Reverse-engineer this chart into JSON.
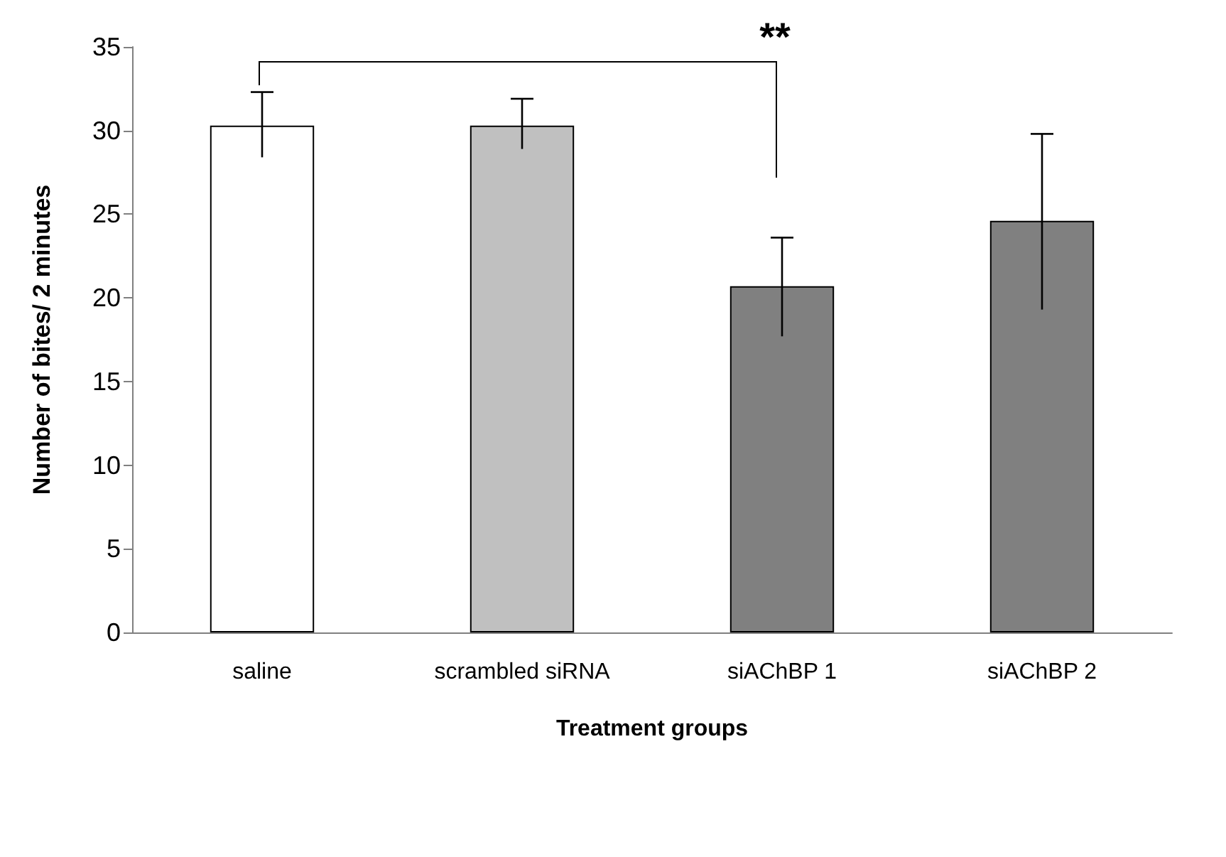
{
  "chart_data": {
    "type": "bar",
    "xlabel": "Treatment groups",
    "ylabel": "Number of bites/ 2 minutes",
    "categories": [
      "saline",
      "scrambled siRNA",
      "siAChBP 1",
      "siAChBP 2"
    ],
    "values": [
      30.3,
      30.3,
      20.7,
      24.6
    ],
    "colors": [
      "#ffffff",
      "#c0c0c0",
      "#808080",
      "#808080"
    ],
    "errors": [
      [
        28.4,
        32.3
      ],
      [
        28.9,
        31.9
      ],
      [
        17.7,
        23.6
      ],
      [
        19.3,
        29.8
      ]
    ],
    "ylim": [
      0,
      35
    ],
    "yticks": [
      0,
      5,
      10,
      15,
      20,
      25,
      30,
      35
    ],
    "grid": false,
    "annotations": [
      "**"
    ]
  }
}
